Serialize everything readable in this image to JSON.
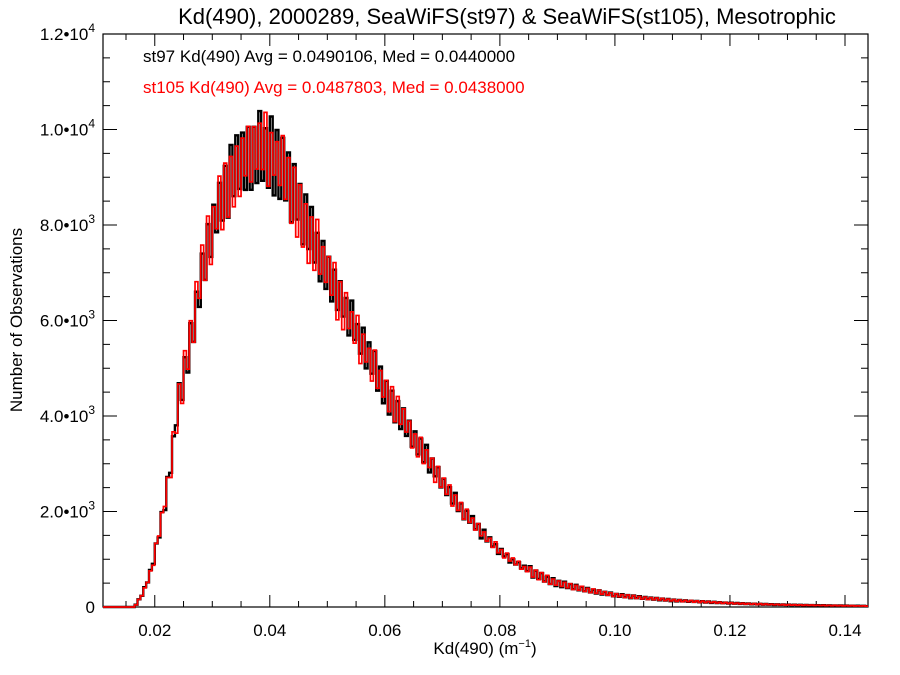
{
  "chart_data": {
    "type": "histogram-step",
    "title": "Kd(490), 2000289, SeaWiFS(st97) & SeaWiFS(st105), Mesotrophic",
    "xlabel_base": "Kd(490) (m",
    "xlabel_sup": "−1",
    "xlabel_tail": ")",
    "ylabel": "Number of Observations",
    "xlim": [
      0.011,
      0.144
    ],
    "ylim": [
      0,
      12000
    ],
    "xticks": [
      0.02,
      0.04,
      0.06,
      0.08,
      0.1,
      0.12,
      0.14
    ],
    "xtick_labels": [
      "0.02",
      "0.04",
      "0.06",
      "0.08",
      "0.10",
      "0.12",
      "0.14"
    ],
    "yticks": [
      {
        "value": 0,
        "base": "0",
        "exp": ""
      },
      {
        "value": 2000,
        "base": "2.0•10",
        "exp": "3"
      },
      {
        "value": 4000,
        "base": "4.0•10",
        "exp": "3"
      },
      {
        "value": 6000,
        "base": "6.0•10",
        "exp": "3"
      },
      {
        "value": 8000,
        "base": "8.0•10",
        "exp": "3"
      },
      {
        "value": 10000,
        "base": "1.0•10",
        "exp": "4"
      },
      {
        "value": 12000,
        "base": "1.2•10",
        "exp": "4"
      }
    ],
    "bin_width": 0.0005,
    "bin_start": 0.011,
    "envelope": [
      [
        0.011,
        0
      ],
      [
        0.0165,
        0
      ],
      [
        0.018,
        300
      ],
      [
        0.0195,
        800
      ],
      [
        0.021,
        1700
      ],
      [
        0.0225,
        2700
      ],
      [
        0.024,
        4200
      ],
      [
        0.026,
        5400
      ],
      [
        0.028,
        6900
      ],
      [
        0.03,
        7950
      ],
      [
        0.032,
        8700
      ],
      [
        0.034,
        9100
      ],
      [
        0.036,
        9450
      ],
      [
        0.038,
        9650
      ],
      [
        0.04,
        9550
      ],
      [
        0.042,
        9200
      ],
      [
        0.044,
        8700
      ],
      [
        0.046,
        8050
      ],
      [
        0.048,
        7550
      ],
      [
        0.05,
        7000
      ],
      [
        0.052,
        6500
      ],
      [
        0.054,
        6000
      ],
      [
        0.056,
        5500
      ],
      [
        0.058,
        5050
      ],
      [
        0.06,
        4550
      ],
      [
        0.062,
        4150
      ],
      [
        0.064,
        3750
      ],
      [
        0.066,
        3350
      ],
      [
        0.068,
        3000
      ],
      [
        0.07,
        2600
      ],
      [
        0.072,
        2250
      ],
      [
        0.074,
        1950
      ],
      [
        0.076,
        1650
      ],
      [
        0.078,
        1400
      ],
      [
        0.08,
        1180
      ],
      [
        0.082,
        980
      ],
      [
        0.084,
        830
      ],
      [
        0.086,
        700
      ],
      [
        0.088,
        590
      ],
      [
        0.09,
        500
      ],
      [
        0.095,
        360
      ],
      [
        0.1,
        250
      ],
      [
        0.105,
        190
      ],
      [
        0.11,
        140
      ],
      [
        0.115,
        110
      ],
      [
        0.12,
        80
      ],
      [
        0.125,
        60
      ],
      [
        0.13,
        45
      ],
      [
        0.135,
        35
      ],
      [
        0.144,
        20
      ]
    ],
    "series": [
      {
        "name": "st97",
        "color": "#000000",
        "annotation": "st97 Kd(490) Avg = 0.0490106, Med = 0.0440000"
      },
      {
        "name": "st105",
        "color": "#ff0000",
        "annotation": "st105 Kd(490) Avg = 0.0487803, Med = 0.0438000"
      }
    ]
  }
}
